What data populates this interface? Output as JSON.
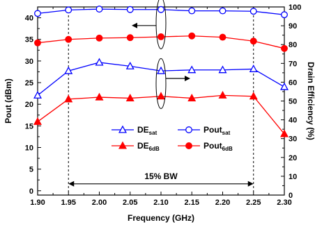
{
  "chart_data": {
    "type": "line",
    "xlabel": "Frequency (GHz)",
    "ylabel_left": "Pout (dBm)",
    "ylabel_right": "Drain Efficiency (%)",
    "x": [
      1.9,
      1.95,
      2.0,
      2.05,
      2.1,
      2.15,
      2.2,
      2.25,
      2.3
    ],
    "x_tick_labels": [
      "1.90",
      "1.95",
      "2.00",
      "2.05",
      "2.10",
      "2.15",
      "2.20",
      "2.25",
      "2.30"
    ],
    "xlim": [
      1.9,
      2.3
    ],
    "ylim_left": [
      -1,
      42.5
    ],
    "y_ticks_left": [
      0,
      5,
      10,
      15,
      20,
      25,
      30,
      35,
      40
    ],
    "ylim_right": [
      0,
      100
    ],
    "y_ticks_right": [
      0,
      10,
      20,
      30,
      40,
      50,
      60,
      70,
      80,
      90,
      100
    ],
    "grid": false,
    "legend_position": "center",
    "series": [
      {
        "key": "pout_sat",
        "name": "Pout",
        "name_sub": "sat",
        "axis": "left",
        "color": "#0000ff",
        "marker": "open-circle",
        "values": [
          41.0,
          41.8,
          42.0,
          41.9,
          41.9,
          41.6,
          41.6,
          41.5,
          40.7
        ]
      },
      {
        "key": "pout_6db",
        "name": "Pout",
        "name_sub": "6dB",
        "axis": "left",
        "color": "#ff0000",
        "marker": "filled-circle",
        "values": [
          34.2,
          35.0,
          35.3,
          35.4,
          35.6,
          35.8,
          35.5,
          34.6,
          32.9
        ]
      },
      {
        "key": "de_sat",
        "name": "DE",
        "name_sub": "sat",
        "axis": "right",
        "color": "#0000ff",
        "marker": "open-triangle",
        "values": [
          53.0,
          66.0,
          70.5,
          68.5,
          66.0,
          66.5,
          66.5,
          67.0,
          57.5
        ]
      },
      {
        "key": "de_6db",
        "name": "DE",
        "name_sub": "6dB",
        "axis": "right",
        "color": "#ff0000",
        "marker": "filled-triangle",
        "values": [
          39.0,
          51.0,
          52.0,
          51.5,
          52.5,
          51.5,
          53.0,
          52.5,
          32.5
        ]
      }
    ],
    "annotations": {
      "bandwidth_label": "15% BW",
      "bandwidth_range": [
        1.95,
        2.25
      ]
    }
  }
}
